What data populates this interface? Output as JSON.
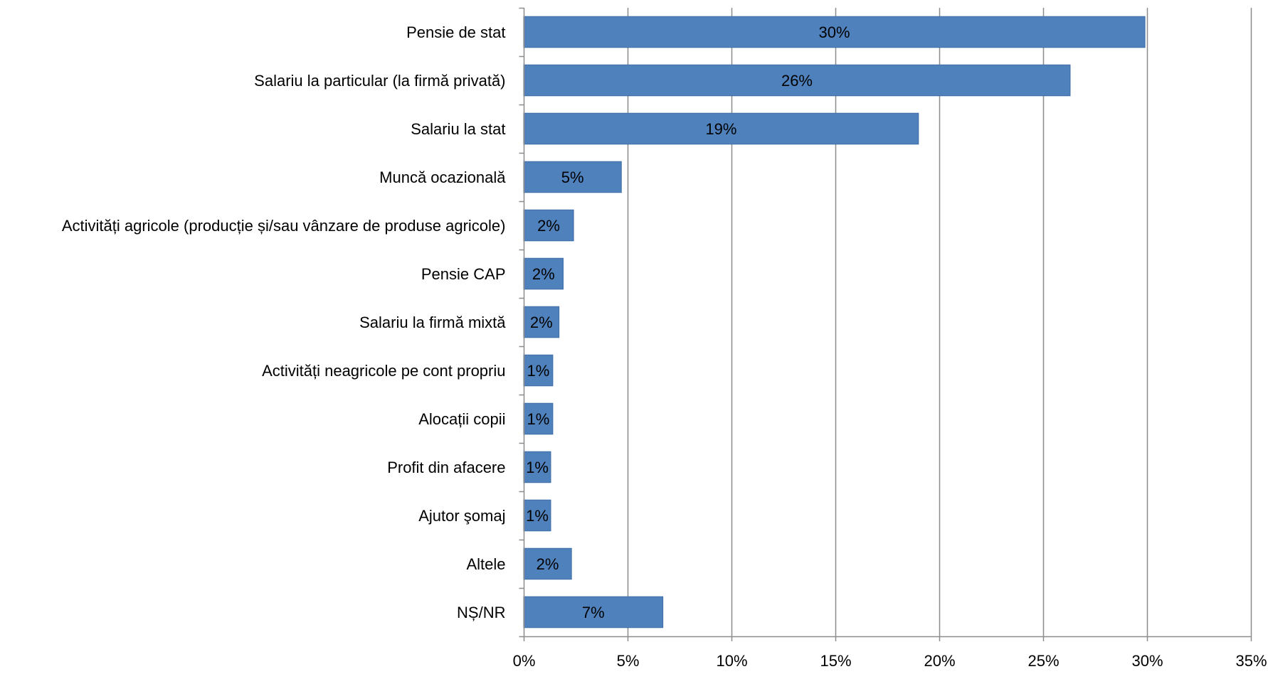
{
  "chart_data": {
    "type": "bar",
    "orientation": "horizontal",
    "categories": [
      "Pensie de stat",
      "Salariu la particular (la firmă privată)",
      "Salariu la stat",
      "Muncă ocazională",
      "Activități agricole (producție și/sau vânzare de produse agricole)",
      "Pensie CAP",
      "Salariu la firmă mixtă",
      "Activități neagricole pe cont propriu",
      "Alocații copii",
      "Profit din afacere",
      "Ajutor şomaj",
      "Altele",
      "NȘ/NR"
    ],
    "values": [
      29.9,
      26.3,
      19.0,
      4.7,
      2.4,
      1.9,
      1.7,
      1.4,
      1.4,
      1.3,
      1.3,
      2.3,
      6.7
    ],
    "data_labels": [
      "30%",
      "26%",
      "19%",
      "5%",
      "2%",
      "2%",
      "2%",
      "1%",
      "1%",
      "1%",
      "1%",
      "2%",
      "7%"
    ],
    "xlim": [
      0,
      35
    ],
    "x_ticks": [
      0,
      5,
      10,
      15,
      20,
      25,
      30,
      35
    ],
    "x_tick_labels": [
      "0%",
      "5%",
      "10%",
      "15%",
      "20%",
      "25%",
      "30%",
      "35%"
    ],
    "grid": true,
    "legend": "none",
    "colors": {
      "bar": "#4F81BD",
      "bar_edge": "#3E6DA6",
      "grid": "#8C8C8C",
      "axis": "#8C8C8C"
    }
  }
}
